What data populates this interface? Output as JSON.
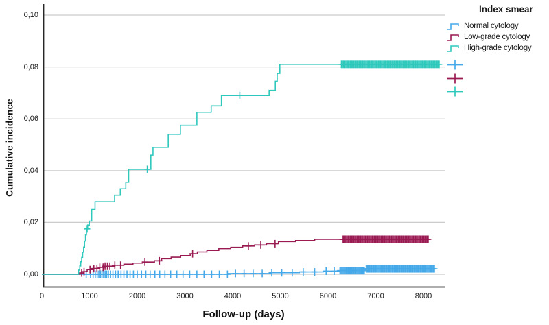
{
  "figure": {
    "legend": {
      "title": "Index smear",
      "entries": [
        {
          "label": "Normal cytology",
          "color": "#45a9e9"
        },
        {
          "label": "Low-grade cytology",
          "color": "#9a1a52"
        },
        {
          "label": "High-grade cytology",
          "color": "#2fc8bd"
        }
      ],
      "censor_symbols": [
        {
          "name": "normal-censor-plus",
          "color": "#45a9e9"
        },
        {
          "name": "low-grade-censor-plus",
          "color": "#9a1a52"
        },
        {
          "name": "high-grade-censor-plus",
          "color": "#2fc8bd"
        }
      ]
    }
  },
  "chart_data": {
    "type": "line",
    "subtype": "cumulative-incidence-step-curves",
    "title": "",
    "xlabel": "Follow-up (days)",
    "ylabel": "Cumulative incidence",
    "xlim": [
      0,
      8450
    ],
    "ylim": [
      0,
      0.104
    ],
    "grid": true,
    "legend_position": "top-right-outside",
    "decimal_separator": ",",
    "xticks": [
      {
        "label": "0",
        "value": 0
      },
      {
        "label": "1000",
        "value": 1000
      },
      {
        "label": "2000",
        "value": 2000
      },
      {
        "label": "3000",
        "value": 3000
      },
      {
        "label": "4000",
        "value": 4000
      },
      {
        "label": "5000",
        "value": 5000
      },
      {
        "label": "6000",
        "value": 6000
      },
      {
        "label": "7000",
        "value": 7000
      },
      {
        "label": "8000",
        "value": 8000
      }
    ],
    "yticks": [
      {
        "label": "0,00",
        "value": 0.0
      },
      {
        "label": "0,02",
        "value": 0.02
      },
      {
        "label": "0,04",
        "value": 0.04
      },
      {
        "label": "0,06",
        "value": 0.06
      },
      {
        "label": "0,08",
        "value": 0.08
      },
      {
        "label": "0,10",
        "value": 0.1
      }
    ],
    "series": [
      {
        "name": "Normal cytology",
        "color": "#45a9e9",
        "steps": [
          [
            0,
            0
          ],
          [
            3900,
            0.0003
          ],
          [
            4800,
            0.0006
          ],
          [
            5400,
            0.0009
          ],
          [
            5900,
            0.0012
          ],
          [
            6250,
            0.0014
          ],
          [
            6780,
            0.0021
          ],
          [
            8250,
            0.0021
          ]
        ],
        "censor_days": [
          930,
          1020,
          1075,
          1120,
          1160,
          1195,
          1230,
          1262,
          1294,
          1326,
          1360,
          1395,
          1440,
          1490,
          1545,
          1600,
          1660,
          1720,
          1785,
          1850,
          1920,
          2000,
          2090,
          2180,
          2270,
          2370,
          2470,
          2580,
          2700,
          2830,
          2960,
          3100,
          3250,
          3400,
          3560,
          3720,
          3890,
          4060,
          4240,
          4430,
          4620,
          4820,
          5030,
          5250,
          5480,
          5720,
          5960,
          6130
        ],
        "censor_dense": [
          {
            "start": 6250,
            "end": 6760,
            "count": 24
          },
          {
            "start": 6800,
            "end": 8230,
            "count": 64
          }
        ]
      },
      {
        "name": "Low-grade cytology",
        "color": "#9a1a52",
        "steps": [
          [
            0,
            0
          ],
          [
            800,
            0.0005
          ],
          [
            870,
            0.001
          ],
          [
            950,
            0.0018
          ],
          [
            1070,
            0.0022
          ],
          [
            1190,
            0.0027
          ],
          [
            1310,
            0.0031
          ],
          [
            1530,
            0.0035
          ],
          [
            1720,
            0.0039
          ],
          [
            1910,
            0.0043
          ],
          [
            2110,
            0.0047
          ],
          [
            2360,
            0.0052
          ],
          [
            2510,
            0.006
          ],
          [
            2710,
            0.0066
          ],
          [
            2910,
            0.0072
          ],
          [
            3110,
            0.0079
          ],
          [
            3260,
            0.0086
          ],
          [
            3460,
            0.0092
          ],
          [
            3710,
            0.0099
          ],
          [
            3960,
            0.0104
          ],
          [
            4210,
            0.0109
          ],
          [
            4460,
            0.0113
          ],
          [
            4710,
            0.0118
          ],
          [
            4960,
            0.0126
          ],
          [
            5320,
            0.013
          ],
          [
            5720,
            0.0135
          ],
          [
            8150,
            0.0135
          ]
        ],
        "censor_days": [
          835,
          885,
          1010,
          1090,
          1155,
          1215,
          1285,
          1325,
          1375,
          1425,
          1530,
          1650,
          2160,
          2465,
          3160,
          4330,
          4590,
          4890
        ],
        "censor_dense": [
          {
            "start": 6300,
            "end": 8100,
            "count": 76
          }
        ]
      },
      {
        "name": "High-grade cytology",
        "color": "#2fc8bd",
        "steps": [
          [
            0,
            0
          ],
          [
            770,
            0.0016
          ],
          [
            795,
            0.0032
          ],
          [
            815,
            0.0048
          ],
          [
            835,
            0.0065
          ],
          [
            855,
            0.0085
          ],
          [
            875,
            0.0105
          ],
          [
            895,
            0.0128
          ],
          [
            915,
            0.0152
          ],
          [
            935,
            0.0175
          ],
          [
            960,
            0.019
          ],
          [
            995,
            0.0205
          ],
          [
            1045,
            0.025
          ],
          [
            1115,
            0.028
          ],
          [
            1525,
            0.0305
          ],
          [
            1645,
            0.033
          ],
          [
            1760,
            0.0355
          ],
          [
            1820,
            0.0405
          ],
          [
            2285,
            0.046
          ],
          [
            2330,
            0.049
          ],
          [
            2650,
            0.054
          ],
          [
            2905,
            0.0575
          ],
          [
            3250,
            0.0625
          ],
          [
            3550,
            0.065
          ],
          [
            3765,
            0.069
          ],
          [
            4765,
            0.071
          ],
          [
            4895,
            0.0745
          ],
          [
            4935,
            0.0775
          ],
          [
            4990,
            0.081
          ],
          [
            8350,
            0.081
          ]
        ],
        "censor_days": [
          950,
          2210,
          4150
        ],
        "censor_dense": [
          {
            "start": 6280,
            "end": 8330,
            "count": 88
          }
        ]
      }
    ],
    "final_values": {
      "Normal cytology": 0.002,
      "Low-grade cytology": 0.0135,
      "High-grade cytology": 0.081
    }
  }
}
